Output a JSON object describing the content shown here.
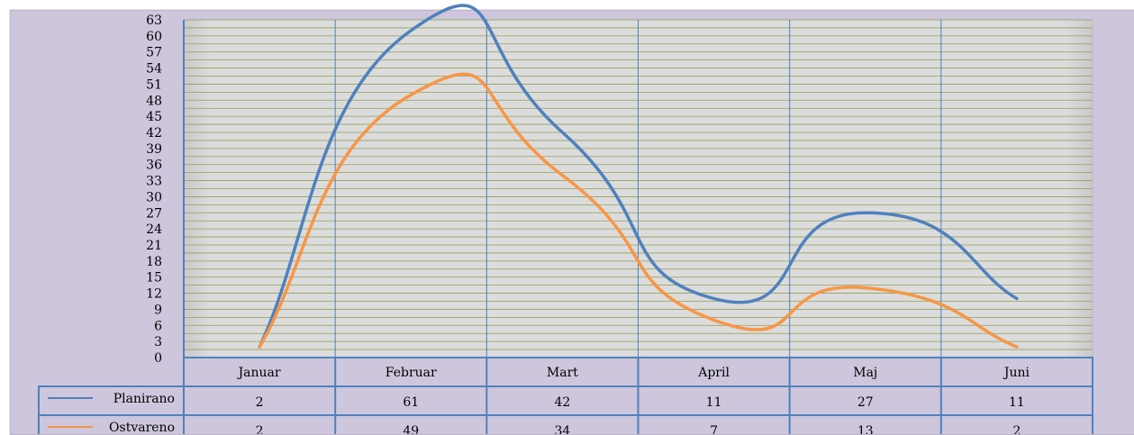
{
  "chart_data": {
    "type": "line",
    "categories": [
      "Januar",
      "Februar",
      "Mart",
      "April",
      "Maj",
      "Juni"
    ],
    "series": [
      {
        "name": "Planirano",
        "values": [
          2,
          61,
          42,
          11,
          27,
          11
        ],
        "color": "#4f81bd"
      },
      {
        "name": "Ostvareno",
        "values": [
          2,
          49,
          34,
          7,
          13,
          2
        ],
        "color": "#f79646"
      }
    ],
    "ylim": [
      0,
      63
    ],
    "yticks": [
      0,
      3,
      6,
      9,
      12,
      15,
      18,
      21,
      24,
      27,
      30,
      33,
      36,
      39,
      42,
      45,
      48,
      51,
      54,
      57,
      60,
      63
    ],
    "grid": true,
    "smooth": true,
    "legend": "data-table",
    "data_table": true
  },
  "colors": {
    "plot_background": "#d9d9d9",
    "gridline": "#8fa05a",
    "frame_background": "#cdc6dc",
    "table_border": "#4f81bd"
  }
}
